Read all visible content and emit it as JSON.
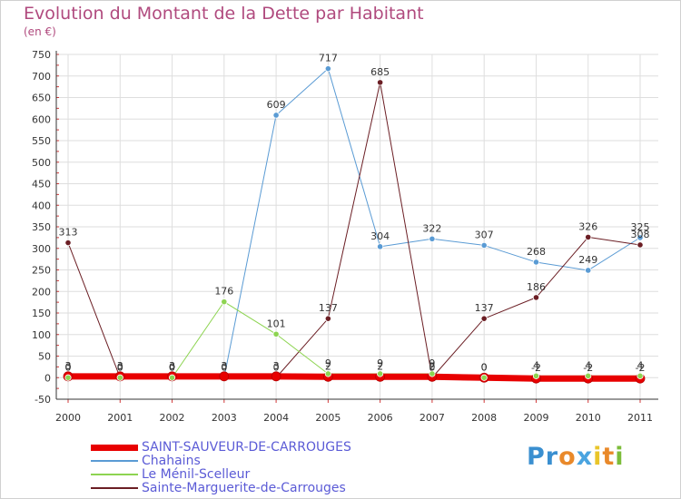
{
  "title": "Evolution du Montant de la Dette par Habitant",
  "subtitle": "(en €)",
  "logo": {
    "letters": [
      "P",
      "r",
      "o",
      "x",
      "i",
      "t",
      "i"
    ],
    "colors": [
      "#3a8fd0",
      "#3a8fd0",
      "#e9892a",
      "#4aa4e0",
      "#e9c52a",
      "#e9892a",
      "#7cbd3a"
    ]
  },
  "chart_data": {
    "type": "line",
    "title": "Evolution du Montant de la Dette par Habitant",
    "ylabel": "(en €)",
    "xlabel": "",
    "x": [
      "2000",
      "2001",
      "2002",
      "2003",
      "2004",
      "2005",
      "2006",
      "2007",
      "2008",
      "2009",
      "2010",
      "2011"
    ],
    "ylim": [
      -50,
      750
    ],
    "yticks": [
      -50,
      0,
      50,
      100,
      150,
      200,
      250,
      300,
      350,
      400,
      450,
      500,
      550,
      600,
      650,
      700,
      750
    ],
    "grid": true,
    "series": [
      {
        "name": "SAINT-SAUVEUR-DE-CARROUGES",
        "color": "#e80000",
        "width": 7,
        "values": [
          3,
          3,
          3,
          3,
          3,
          2,
          2,
          2,
          0,
          -2,
          -2,
          -2
        ],
        "labels": [
          "3",
          "3",
          "3",
          "3",
          "3",
          "2",
          "2",
          "2",
          "0",
          "-2",
          "-2",
          "-2"
        ]
      },
      {
        "name": "Chahains",
        "color": "#5a9bd4",
        "width": 1,
        "values": [
          0,
          0,
          0,
          0,
          609,
          717,
          304,
          322,
          307,
          268,
          249,
          325
        ],
        "labels": [
          "0",
          "0",
          "0",
          "0",
          "609",
          "717",
          "304",
          "322",
          "307",
          "268",
          "249",
          "325"
        ]
      },
      {
        "name": "Le Ménil-Scelleur",
        "color": "#8dd451",
        "width": 1,
        "values": [
          0,
          0,
          0,
          176,
          101,
          9,
          9,
          9,
          0,
          4,
          4,
          4
        ],
        "labels": [
          "0",
          "0",
          "0",
          "176",
          "101",
          "9",
          "9",
          "9",
          "0",
          "4",
          "4",
          "4"
        ]
      },
      {
        "name": "Sainte-Marguerite-de-Carrouges",
        "color": "#6b1e24",
        "width": 1,
        "values": [
          313,
          0,
          0,
          0,
          0,
          137,
          685,
          0,
          137,
          186,
          326,
          308
        ],
        "labels": [
          "313",
          "0",
          "0",
          "0",
          "0",
          "137",
          "685",
          "0",
          "137",
          "186",
          "326",
          "308"
        ]
      }
    ]
  }
}
